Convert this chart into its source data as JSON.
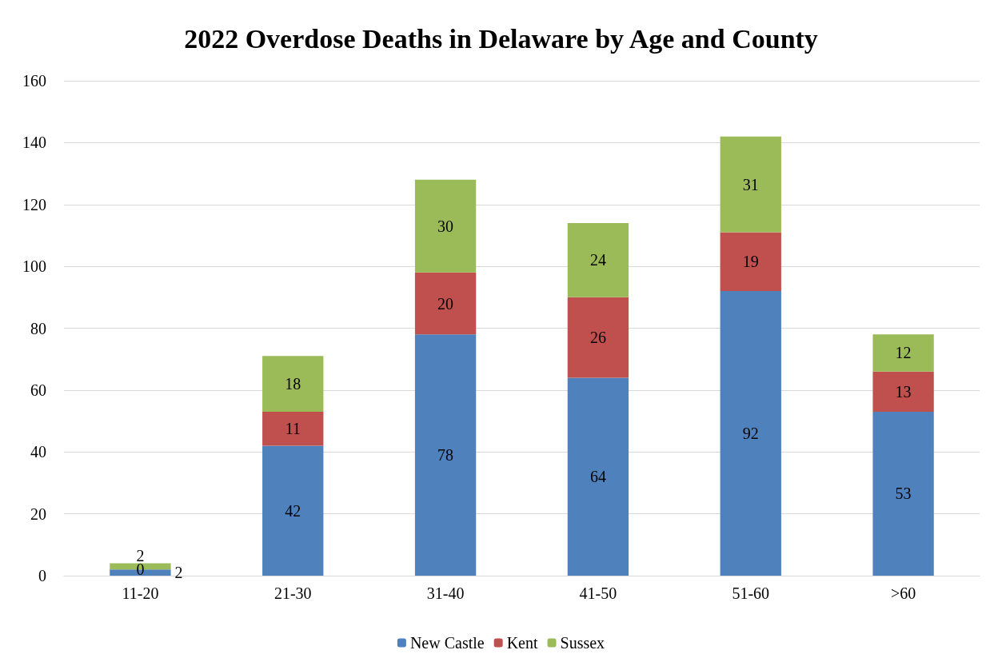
{
  "chart_data": {
    "type": "bar",
    "title": "2022 Overdose Deaths in Delaware by Age and County",
    "categories": [
      "11-20",
      "21-30",
      "31-40",
      "41-50",
      "51-60",
      ">60"
    ],
    "series": [
      {
        "name": "New Castle",
        "color": "#4f81bd",
        "values": [
          2,
          42,
          78,
          64,
          92,
          53
        ]
      },
      {
        "name": "Kent",
        "color": "#c0504d",
        "values": [
          0,
          11,
          20,
          26,
          19,
          13
        ]
      },
      {
        "name": "Sussex",
        "color": "#9bbb59",
        "values": [
          2,
          18,
          30,
          24,
          31,
          12
        ]
      }
    ],
    "stacked": true,
    "data_labels": true,
    "ylim": [
      0,
      160
    ],
    "yticks": [
      0,
      20,
      40,
      60,
      80,
      100,
      120,
      140,
      160
    ],
    "grid": "y",
    "legend": "bottom"
  }
}
